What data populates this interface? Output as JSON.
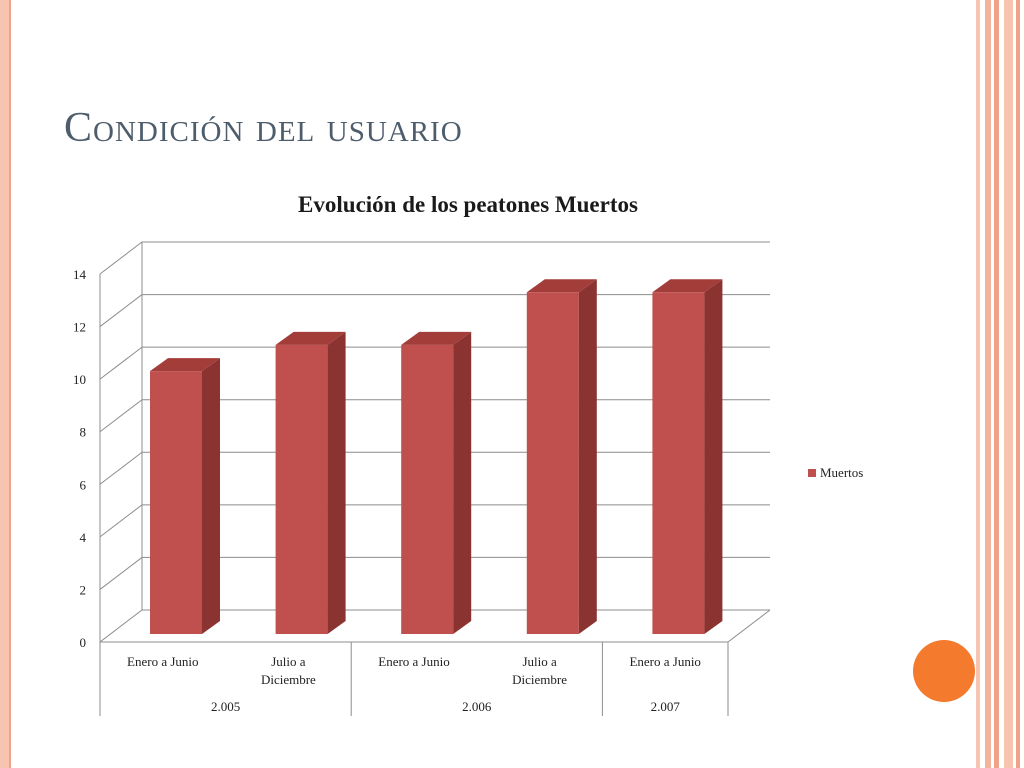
{
  "slide": {
    "title": "Condición del usuario",
    "accent_colors": {
      "frame": "#f7c4b0",
      "stripe_dark": "#f1a38a",
      "dot": "#f47b2e",
      "title_text": "#4e5d6c"
    }
  },
  "chart_data": {
    "type": "bar",
    "title": "Evolución de los peatones Muertos",
    "xlabel": "",
    "ylabel": "",
    "ylim": [
      0,
      14
    ],
    "yticks": [
      0,
      2,
      4,
      6,
      8,
      10,
      12,
      14
    ],
    "grid": true,
    "three_d": true,
    "legend_position": "right",
    "categories": [
      {
        "label": "Enero a Junio",
        "group": "2.005"
      },
      {
        "label": "Julio a Diciembre",
        "group": "2.005"
      },
      {
        "label": "Enero a Junio",
        "group": "2.006"
      },
      {
        "label": "Julio a Diciembre",
        "group": "2.006"
      },
      {
        "label": "Enero a Junio",
        "group": "2.007"
      }
    ],
    "groups": [
      "2.005",
      "2.006",
      "2.007"
    ],
    "series": [
      {
        "name": "Muertos",
        "color": "#c0504d",
        "values": [
          10,
          11,
          11,
          13,
          13
        ]
      }
    ]
  }
}
